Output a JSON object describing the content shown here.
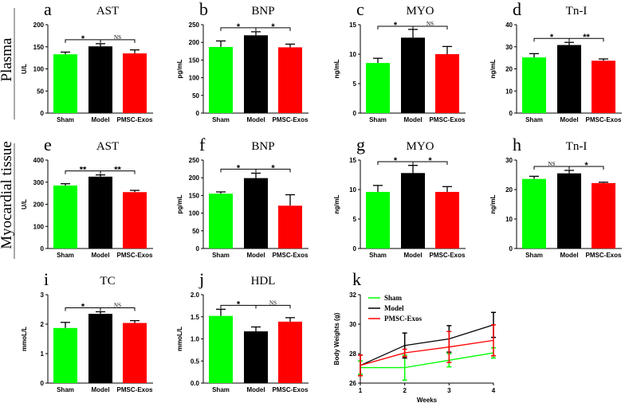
{
  "row_labels": [
    "Plasma",
    "Myocardial tissue"
  ],
  "colors": {
    "Sham": "#00ff00",
    "Model": "#000000",
    "PMSC-Exos": "#ff0000"
  },
  "chart_data": [
    {
      "type": "bar",
      "letter": "a",
      "title": "AST",
      "ylabel": "U/L",
      "categories": [
        "Sham",
        "Model",
        "PMSC-Exos"
      ],
      "values": [
        133,
        151,
        135
      ],
      "errors": [
        5,
        6,
        8
      ],
      "ylim": [
        0,
        200
      ],
      "yticks": [
        "0",
        "50",
        "100",
        "150",
        "200"
      ],
      "significance": [
        "*",
        "NS"
      ]
    },
    {
      "type": "bar",
      "letter": "b",
      "title": "BNP",
      "ylabel": "pg/mL",
      "categories": [
        "Sham",
        "Model",
        "PMSC-Exos"
      ],
      "values": [
        187,
        220,
        186
      ],
      "errors": [
        17,
        10,
        9
      ],
      "ylim": [
        0,
        250
      ],
      "yticks": [
        "0",
        "50",
        "100",
        "150",
        "200",
        "250"
      ],
      "significance": [
        "*",
        "*"
      ]
    },
    {
      "type": "bar",
      "letter": "c",
      "title": "MYO",
      "ylabel": "ng/mL",
      "categories": [
        "Sham",
        "Model",
        "PMSC-Exos"
      ],
      "values": [
        8.5,
        12.8,
        10.0
      ],
      "errors": [
        0.8,
        1.4,
        1.3
      ],
      "ylim": [
        0,
        15
      ],
      "yticks": [
        "0",
        "5",
        "10",
        "15"
      ],
      "significance": [
        "*",
        "NS"
      ]
    },
    {
      "type": "bar",
      "letter": "d",
      "title": "Tn-I",
      "ylabel": "ng/mL",
      "categories": [
        "Sham",
        "Model",
        "PMSC-Exos"
      ],
      "values": [
        25.2,
        30.8,
        23.7
      ],
      "errors": [
        1.7,
        1.2,
        0.8
      ],
      "ylim": [
        0,
        40
      ],
      "yticks": [
        "0",
        "10",
        "20",
        "30",
        "40"
      ],
      "significance": [
        "*",
        "**"
      ]
    },
    {
      "type": "bar",
      "letter": "e",
      "title": "AST",
      "ylabel": "U/L",
      "categories": [
        "Sham",
        "Model",
        "PMSC-Exos"
      ],
      "values": [
        285,
        325,
        255
      ],
      "errors": [
        8,
        8,
        8
      ],
      "ylim": [
        0,
        400
      ],
      "yticks": [
        "0",
        "100",
        "200",
        "300",
        "400"
      ],
      "significance": [
        "**",
        "**"
      ]
    },
    {
      "type": "bar",
      "letter": "f",
      "title": "BNP",
      "ylabel": "pg/mL",
      "categories": [
        "Sham",
        "Model",
        "PMSC-Exos"
      ],
      "values": [
        155,
        199,
        121
      ],
      "errors": [
        5,
        14,
        31
      ],
      "ylim": [
        0,
        250
      ],
      "yticks": [
        "0",
        "50",
        "100",
        "150",
        "200",
        "250"
      ],
      "significance": [
        "*",
        "*"
      ]
    },
    {
      "type": "bar",
      "letter": "g",
      "title": "MYO",
      "ylabel": "ng/mL",
      "categories": [
        "Sham",
        "Model",
        "PMSC-Exos"
      ],
      "values": [
        9.6,
        12.8,
        9.6
      ],
      "errors": [
        1.1,
        1.3,
        0.9
      ],
      "ylim": [
        0,
        15
      ],
      "yticks": [
        "0",
        "5",
        "10",
        "15"
      ],
      "significance": [
        "*",
        "*"
      ]
    },
    {
      "type": "bar",
      "letter": "h",
      "title": "Tn-I",
      "ylabel": "ng/mL",
      "categories": [
        "Sham",
        "Model",
        "PMSC-Exos"
      ],
      "values": [
        23.6,
        25.5,
        22.2
      ],
      "errors": [
        0.9,
        1.0,
        0.3
      ],
      "ylim": [
        0,
        30
      ],
      "yticks": [
        "0",
        "10",
        "20",
        "30"
      ],
      "significance": [
        "NS",
        "*"
      ]
    },
    {
      "type": "bar",
      "letter": "i",
      "title": "TC",
      "ylabel": "mmoL/L",
      "categories": [
        "Sham",
        "Model",
        "PMSC-Exos"
      ],
      "values": [
        1.87,
        2.35,
        2.04
      ],
      "errors": [
        0.19,
        0.07,
        0.08
      ],
      "ylim": [
        0,
        3
      ],
      "yticks": [
        "0",
        "1",
        "2",
        "3"
      ],
      "significance": [
        "*",
        "NS"
      ]
    },
    {
      "type": "bar",
      "letter": "j",
      "title": "HDL",
      "ylabel": "mmoL/L",
      "categories": [
        "Sham",
        "Model",
        "PMSC-Exos"
      ],
      "values": [
        1.52,
        1.17,
        1.39
      ],
      "errors": [
        0.15,
        0.1,
        0.09
      ],
      "ylim": [
        0,
        2
      ],
      "yticks": [
        "0.0",
        "0.5",
        "1.0",
        "1.5",
        "2.0"
      ],
      "significance": [
        "*",
        "NS"
      ]
    },
    {
      "type": "line",
      "letter": "k",
      "title": "",
      "xlabel": "Weeks",
      "ylabel": "Body Weights (g)",
      "x": [
        1,
        2,
        3,
        4
      ],
      "xticks": [
        "1",
        "2",
        "3",
        "4"
      ],
      "ylim": [
        26,
        32
      ],
      "yticks": [
        "26",
        "28",
        "30",
        "32"
      ],
      "legend": "top-left",
      "series": [
        {
          "name": "Sham",
          "values": [
            27.05,
            27.05,
            27.55,
            28.05
          ],
          "errors": [
            0.45,
            0.85,
            0.45,
            0.35
          ]
        },
        {
          "name": "Model",
          "values": [
            27.2,
            28.55,
            29.0,
            29.95
          ],
          "errors": [
            0.7,
            0.85,
            0.9,
            0.85
          ]
        },
        {
          "name": "PMSC-Exos",
          "values": [
            27.2,
            28.05,
            28.45,
            28.9
          ],
          "errors": [
            0.7,
            0.25,
            1.05,
            1.05
          ]
        }
      ]
    }
  ]
}
